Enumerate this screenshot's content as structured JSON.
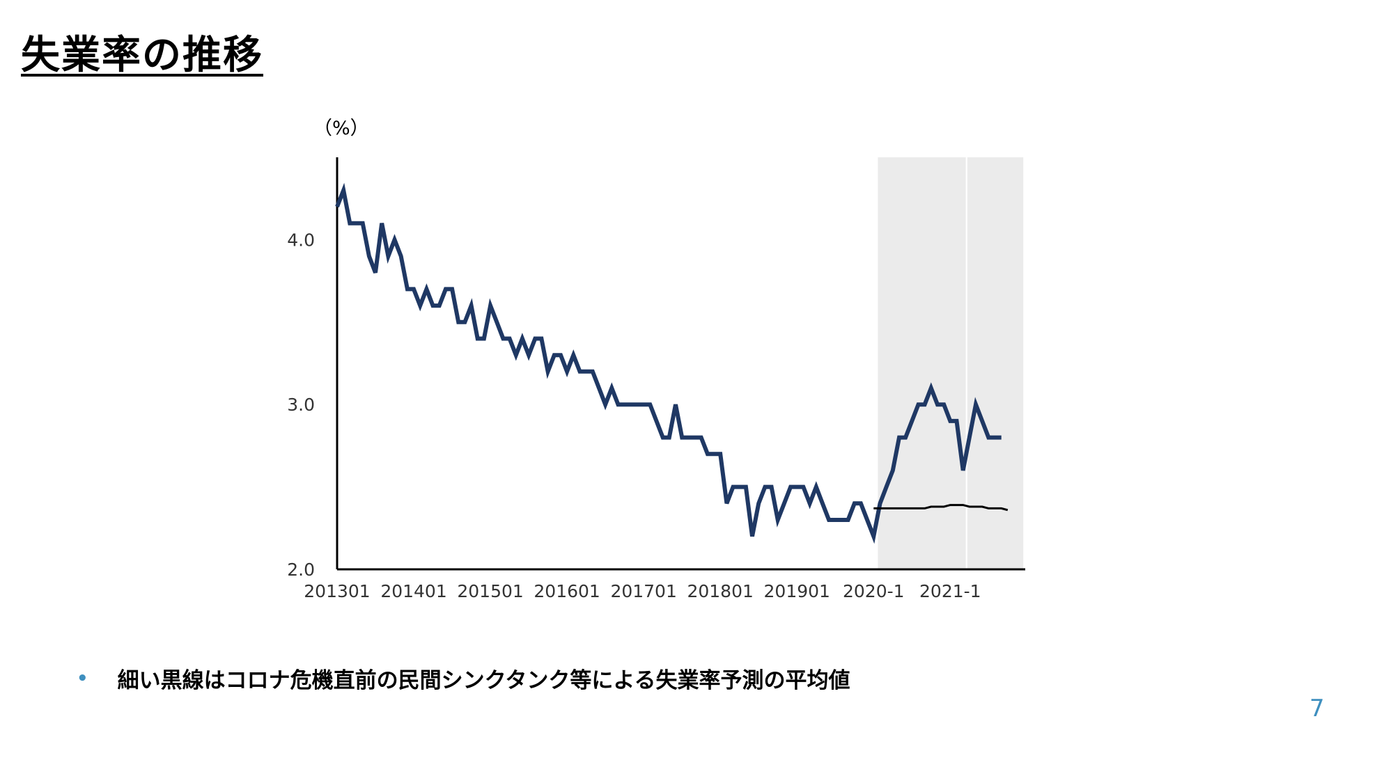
{
  "slide": {
    "title": "失業率の推移",
    "note": "細い黒線はコロナ危機直前の民間シンクタンク等による失業率予測の平均値",
    "page_number": "7"
  },
  "chart_data": {
    "type": "line",
    "title": "",
    "xlabel": "",
    "ylabel": "（%）",
    "ylim": [
      2.0,
      4.5
    ],
    "yticks": [
      2.0,
      3.0,
      4.0
    ],
    "ytick_labels": [
      "2.0",
      "3.0",
      "4.0"
    ],
    "xticks": [
      "201301",
      "201401",
      "201501",
      "201601",
      "201701",
      "201801",
      "201901",
      "2020-1",
      "2021-1"
    ],
    "grid": false,
    "legend": "none",
    "shaded_periods": [
      {
        "start": "2020-02",
        "end": "2021-03"
      },
      {
        "start": "2021-04",
        "end": "2021-12"
      }
    ],
    "series": [
      {
        "color": "#1f3864",
        "start": "2013-01",
        "values": [
          4.2,
          4.3,
          4.1,
          4.1,
          4.1,
          3.9,
          3.8,
          4.1,
          3.9,
          4.0,
          3.9,
          3.7,
          3.7,
          3.6,
          3.7,
          3.6,
          3.6,
          3.7,
          3.7,
          3.5,
          3.5,
          3.6,
          3.4,
          3.4,
          3.6,
          3.5,
          3.4,
          3.4,
          3.3,
          3.4,
          3.3,
          3.4,
          3.4,
          3.2,
          3.3,
          3.3,
          3.2,
          3.3,
          3.2,
          3.2,
          3.2,
          3.1,
          3.0,
          3.1,
          3.0,
          3.0,
          3.0,
          3.0,
          3.0,
          3.0,
          2.9,
          2.8,
          2.8,
          3.0,
          2.8,
          2.8,
          2.8,
          2.8,
          2.7,
          2.7,
          2.7,
          2.4,
          2.5,
          2.5,
          2.5,
          2.2,
          2.4,
          2.5,
          2.5,
          2.3,
          2.4,
          2.5,
          2.5,
          2.5,
          2.4,
          2.5,
          2.4,
          2.3,
          2.3,
          2.3,
          2.3,
          2.4,
          2.4,
          2.3,
          2.2,
          2.4,
          2.5,
          2.6,
          2.8,
          2.8,
          2.9,
          3.0,
          3.0,
          3.1,
          3.0,
          3.0,
          2.9,
          2.9,
          2.6,
          2.8,
          3.0,
          2.9,
          2.8,
          2.8,
          2.8
        ]
      },
      {
        "color": "#000000",
        "start": "2020-01",
        "values": [
          2.37,
          2.37,
          2.37,
          2.37,
          2.37,
          2.37,
          2.37,
          2.37,
          2.37,
          2.38,
          2.38,
          2.38,
          2.39,
          2.39,
          2.39,
          2.38,
          2.38,
          2.38,
          2.37,
          2.37,
          2.37,
          2.36
        ]
      }
    ]
  }
}
